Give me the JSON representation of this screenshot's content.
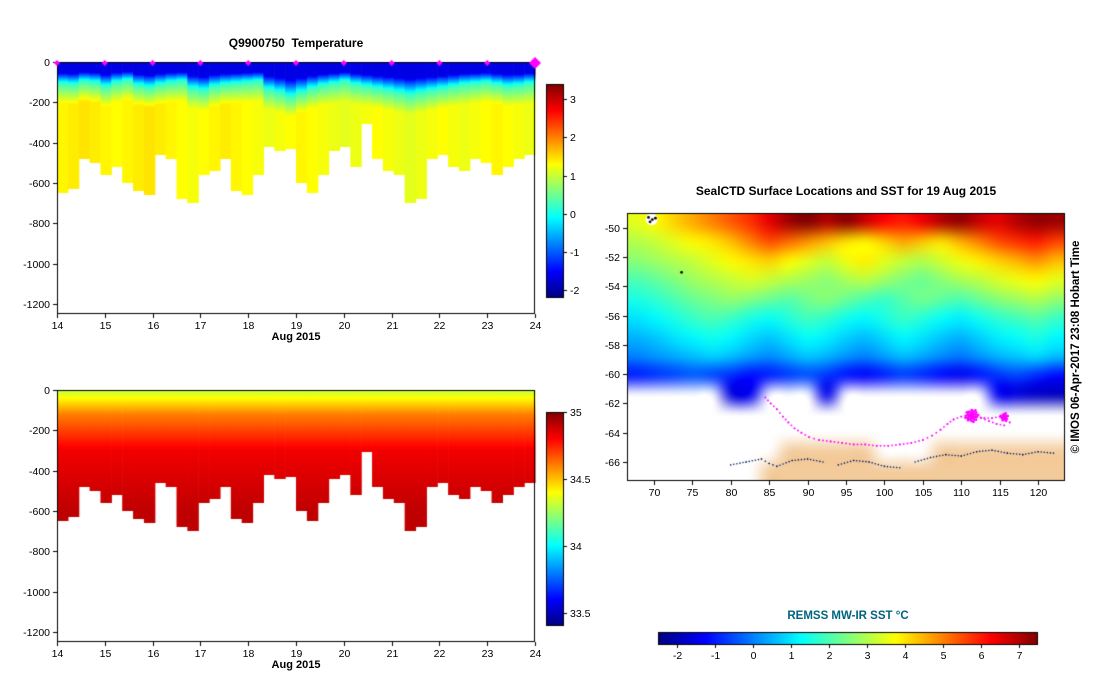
{
  "chart_data": [
    {
      "type": "heatmap",
      "id": "temperature_section",
      "title": "Q9900750  Temperature",
      "x_label": "Aug 2015",
      "x_range": [
        14,
        24
      ],
      "x_ticks": [
        14,
        15,
        16,
        17,
        18,
        19,
        20,
        21,
        22,
        23,
        24
      ],
      "y_ticks": [
        0,
        -200,
        -400,
        -600,
        -800,
        -1000,
        -1200
      ],
      "depth_max_m": 1250,
      "marker_color": "#ff00ff",
      "surface_marker_days": [
        14,
        15,
        16,
        17,
        18,
        19,
        20,
        21,
        22,
        23,
        24
      ],
      "profile": {
        "surface_temp_c": -1.65,
        "mixed_layer_base_temp_c": 0.2,
        "transition_thickness_m": 100
      },
      "bottom_depth_m": [
        -650,
        -630,
        -480,
        -500,
        -560,
        -520,
        -600,
        -640,
        -660,
        -460,
        -480,
        -680,
        -700,
        -560,
        -540,
        -480,
        -640,
        -660,
        -560,
        -420,
        -440,
        -430,
        -600,
        -650,
        -560,
        -440,
        -420,
        -520,
        -310,
        -480,
        -540,
        -560,
        -700,
        -680,
        -480,
        -460,
        -520,
        -540,
        -480,
        -500,
        -560,
        -520,
        -480,
        -460
      ],
      "mixed_layer_depth_m": [
        105,
        110,
        95,
        100,
        120,
        100,
        90,
        115,
        125,
        110,
        100,
        95,
        130,
        140,
        120,
        110,
        105,
        100,
        95,
        135,
        150,
        170,
        150,
        130,
        115,
        105,
        95,
        110,
        120,
        130,
        140,
        150,
        160,
        150,
        140,
        130,
        120,
        110,
        105,
        100,
        110,
        120,
        115,
        105
      ],
      "deep_temp_c": [
        1.35,
        1.4,
        1.45,
        1.4,
        1.35,
        1.3,
        1.35,
        1.4,
        1.45,
        1.4,
        1.35,
        1.3,
        1.25,
        1.3,
        1.35,
        1.4,
        1.35,
        1.3,
        1.25,
        1.2,
        1.25,
        1.3,
        1.35,
        1.3,
        1.25,
        1.2,
        1.15,
        1.2,
        1.25,
        1.3,
        1.25,
        1.2,
        1.15,
        1.2,
        1.25,
        1.3,
        1.25,
        1.2,
        1.25,
        1.3,
        1.35,
        1.3,
        1.25,
        1.2
      ],
      "colorbar": {
        "domain": [
          -2.2,
          3.4
        ],
        "ticks": [
          -2,
          -1,
          0,
          1,
          2,
          3
        ]
      }
    },
    {
      "type": "heatmap",
      "id": "salinity_section",
      "title": "",
      "x_label": "Aug 2015",
      "x_range": [
        14,
        24
      ],
      "x_ticks": [
        14,
        15,
        16,
        17,
        18,
        19,
        20,
        21,
        22,
        23,
        24
      ],
      "y_ticks": [
        0,
        -200,
        -400,
        -600,
        -800,
        -1000,
        -1200
      ],
      "depth_max_m": 1250,
      "profile_breakpoints": [
        [
          0,
          34.3
        ],
        [
          120,
          34.6
        ],
        [
          300,
          34.82
        ],
        [
          600,
          34.9
        ],
        [
          1250,
          34.9
        ]
      ],
      "bottom_depth_m": [
        -650,
        -630,
        -480,
        -500,
        -560,
        -520,
        -600,
        -640,
        -660,
        -460,
        -480,
        -680,
        -700,
        -560,
        -540,
        -480,
        -640,
        -660,
        -560,
        -420,
        -440,
        -430,
        -600,
        -650,
        -560,
        -440,
        -420,
        -520,
        -310,
        -480,
        -540,
        -560,
        -700,
        -680,
        -480,
        -460,
        -520,
        -540,
        -480,
        -500,
        -560,
        -520,
        -480,
        -460
      ],
      "colorbar": {
        "domain": [
          33.4,
          35.0
        ],
        "ticks": [
          33.5,
          34,
          34.5,
          35
        ]
      }
    },
    {
      "type": "map",
      "id": "sst_map",
      "title": "SealCTD Surface Locations and SST for 19 Aug 2015",
      "credit": "© IMOS 06-Apr-2017 23:08 Hobart Time",
      "lon_range": [
        66.5,
        123.5
      ],
      "lat_range": [
        -49.0,
        -67.3
      ],
      "lon_ticks": [
        70,
        75,
        80,
        85,
        90,
        95,
        100,
        105,
        110,
        115,
        120
      ],
      "lat_ticks": [
        -50,
        -52,
        -54,
        -56,
        -58,
        -60,
        -62,
        -64,
        -66
      ],
      "land_color": "#f3cb9b",
      "no_data_color": "#ffffff",
      "sst_grid": {
        "values": [
          [
            3.5,
            3.8,
            4.2,
            4.6,
            5.0,
            5.4,
            5.8,
            6.5,
            7.2,
            7.5,
            7.0,
            7.4,
            6.8,
            6.2,
            6.0,
            6.4,
            7.0,
            7.3,
            6.8,
            6.5,
            7.0,
            7.3,
            7.2
          ],
          [
            3.0,
            3.2,
            3.5,
            3.8,
            4.0,
            4.4,
            5.0,
            5.5,
            5.2,
            4.8,
            4.4,
            4.0,
            3.8,
            4.2,
            4.6,
            4.3,
            4.0,
            4.5,
            5.0,
            5.5,
            5.8,
            6.0,
            5.6
          ],
          [
            2.6,
            2.8,
            3.0,
            3.2,
            3.5,
            3.8,
            4.0,
            4.2,
            3.8,
            3.5,
            3.2,
            3.6,
            3.9,
            3.5,
            3.2,
            3.0,
            3.3,
            3.6,
            3.9,
            4.2,
            4.5,
            4.8,
            4.4
          ],
          [
            2.0,
            2.2,
            2.5,
            2.8,
            3.0,
            3.2,
            3.4,
            3.2,
            3.0,
            2.8,
            2.6,
            2.9,
            3.1,
            2.8,
            2.5,
            2.3,
            2.6,
            2.9,
            3.1,
            3.4,
            3.6,
            3.8,
            3.5
          ],
          [
            1.5,
            1.7,
            2.0,
            2.3,
            2.5,
            2.7,
            2.5,
            2.3,
            2.1,
            2.4,
            2.6,
            2.3,
            2.0,
            1.8,
            2.1,
            2.4,
            2.2,
            2.0,
            2.3,
            2.6,
            2.8,
            3.0,
            2.7
          ],
          [
            1.0,
            1.2,
            1.5,
            1.8,
            2.0,
            1.8,
            1.5,
            1.3,
            1.6,
            1.9,
            1.7,
            1.4,
            1.2,
            1.5,
            1.8,
            1.6,
            1.3,
            1.1,
            1.4,
            1.7,
            1.9,
            2.1,
            1.8
          ],
          [
            0.5,
            0.7,
            1.0,
            1.2,
            1.4,
            1.2,
            0.9,
            0.7,
            1.0,
            1.3,
            1.1,
            0.8,
            0.6,
            0.9,
            1.2,
            1.0,
            0.7,
            0.5,
            0.8,
            1.1,
            1.3,
            1.5,
            1.2
          ],
          [
            0.0,
            0.2,
            0.4,
            0.6,
            0.8,
            0.6,
            0.3,
            0.1,
            0.4,
            0.7,
            0.5,
            0.2,
            0.0,
            0.3,
            0.6,
            0.4,
            0.1,
            -0.1,
            0.2,
            0.5,
            0.7,
            0.9,
            0.6
          ],
          [
            -1.0,
            -0.8,
            -0.6,
            -0.4,
            -0.6,
            -0.9,
            -1.2,
            -1.0,
            -0.7,
            -0.5,
            -0.8,
            -1.1,
            -1.3,
            -1.0,
            -0.7,
            -0.9,
            -1.2,
            -1.4,
            -1.1,
            -0.8,
            -0.6,
            -0.9,
            -1.2
          ],
          [
            "w",
            "w",
            "w",
            "w",
            "w",
            -1.6,
            -1.4,
            "w",
            "w",
            "w",
            -1.5,
            "w",
            "w",
            "w",
            "w",
            "w",
            "w",
            "w",
            "w",
            -1.4,
            -1.6,
            -1.8,
            -1.9
          ],
          [
            "w",
            "w",
            "w",
            "w",
            "w",
            "w",
            "w",
            "w",
            "w",
            "w",
            "w",
            "w",
            "w",
            "w",
            "w",
            "w",
            "w",
            "w",
            "w",
            "w",
            "w",
            "w",
            "w"
          ],
          [
            "w",
            "w",
            "w",
            "w",
            "w",
            "w",
            "w",
            "w",
            "w",
            "w",
            "w",
            "w",
            "w",
            "w",
            "w",
            "w",
            "w",
            "w",
            "w",
            "w",
            "w",
            "w",
            "w"
          ],
          [
            "w",
            "w",
            "w",
            "w",
            "w",
            "w",
            "w",
            "w",
            "L",
            "L",
            "L",
            "L",
            "L",
            "w",
            "w",
            "w",
            "L",
            "L",
            "L",
            "L",
            "L",
            "L",
            "L"
          ],
          [
            "w",
            "w",
            "w",
            "w",
            "w",
            "w",
            "w",
            "L",
            "L",
            "L",
            "L",
            "L",
            "L",
            "L",
            "L",
            "L",
            "L",
            "L",
            "L",
            "L",
            "L",
            "L",
            "L"
          ]
        ]
      },
      "track": {
        "color": "#ff00ff",
        "points": [
          [
            84.5,
            -61.6
          ],
          [
            85.2,
            -62.0
          ],
          [
            86.0,
            -62.4
          ],
          [
            86.8,
            -62.9
          ],
          [
            87.5,
            -63.3
          ],
          [
            88.3,
            -63.7
          ],
          [
            89.2,
            -64.0
          ],
          [
            90.2,
            -64.3
          ],
          [
            91.5,
            -64.5
          ],
          [
            93.0,
            -64.6
          ],
          [
            94.5,
            -64.7
          ],
          [
            96.0,
            -64.8
          ],
          [
            97.5,
            -64.8
          ],
          [
            99.0,
            -64.9
          ],
          [
            100.5,
            -64.9
          ],
          [
            102.0,
            -64.8
          ],
          [
            103.5,
            -64.7
          ],
          [
            105.0,
            -64.5
          ],
          [
            106.2,
            -64.2
          ],
          [
            107.3,
            -63.8
          ],
          [
            108.2,
            -63.4
          ],
          [
            109.0,
            -63.1
          ],
          [
            110.0,
            -62.9
          ],
          [
            111.0,
            -62.8
          ],
          [
            112.0,
            -62.9
          ],
          [
            113.0,
            -63.0
          ],
          [
            114.0,
            -63.0
          ],
          [
            115.0,
            -62.9
          ],
          [
            115.8,
            -63.0
          ],
          [
            116.3,
            -63.3
          ],
          [
            115.6,
            -63.5
          ],
          [
            114.6,
            -63.4
          ],
          [
            113.6,
            -63.2
          ],
          [
            112.6,
            -63.0
          ],
          [
            111.8,
            -62.9
          ]
        ],
        "clusters": [
          {
            "center": [
              111.4,
              -62.85
            ],
            "radius_deg": 0.55,
            "count": 26
          },
          {
            "center": [
              115.6,
              -62.95
            ],
            "radius_deg": 0.35,
            "count": 12
          }
        ]
      },
      "coastlines": {
        "color": "#001a66",
        "lines": [
          [
            [
              80,
              -66.2
            ],
            [
              82,
              -66.0
            ],
            [
              84,
              -65.8
            ],
            [
              85,
              -66.1
            ],
            [
              86,
              -66.3
            ],
            [
              88,
              -65.9
            ],
            [
              90,
              -65.8
            ],
            [
              92,
              -66.0
            ]
          ],
          [
            [
              94,
              -66.2
            ],
            [
              96,
              -65.9
            ],
            [
              98,
              -66.0
            ],
            [
              100,
              -66.3
            ],
            [
              102,
              -66.4
            ]
          ],
          [
            [
              104,
              -66.0
            ],
            [
              106,
              -65.7
            ],
            [
              108,
              -65.5
            ],
            [
              110,
              -65.6
            ],
            [
              112,
              -65.3
            ],
            [
              114,
              -65.2
            ],
            [
              116,
              -65.4
            ],
            [
              118,
              -65.5
            ],
            [
              120,
              -65.3
            ],
            [
              122,
              -65.4
            ]
          ]
        ]
      },
      "islands": {
        "color": "#000000",
        "halo_center": [
          69.7,
          -49.42
        ],
        "points": [
          [
            69.3,
            -49.3
          ],
          [
            69.8,
            -49.45
          ],
          [
            70.2,
            -49.35
          ],
          [
            69.5,
            -49.6
          ],
          [
            73.6,
            -53.05
          ]
        ]
      },
      "colorbar": {
        "label": "REMSS MW-IR SST °C",
        "label_color": "#00647f",
        "domain": [
          -2.5,
          7.5
        ],
        "ticks": [
          -2,
          -1,
          0,
          1,
          2,
          3,
          4,
          5,
          6,
          7
        ]
      }
    }
  ]
}
